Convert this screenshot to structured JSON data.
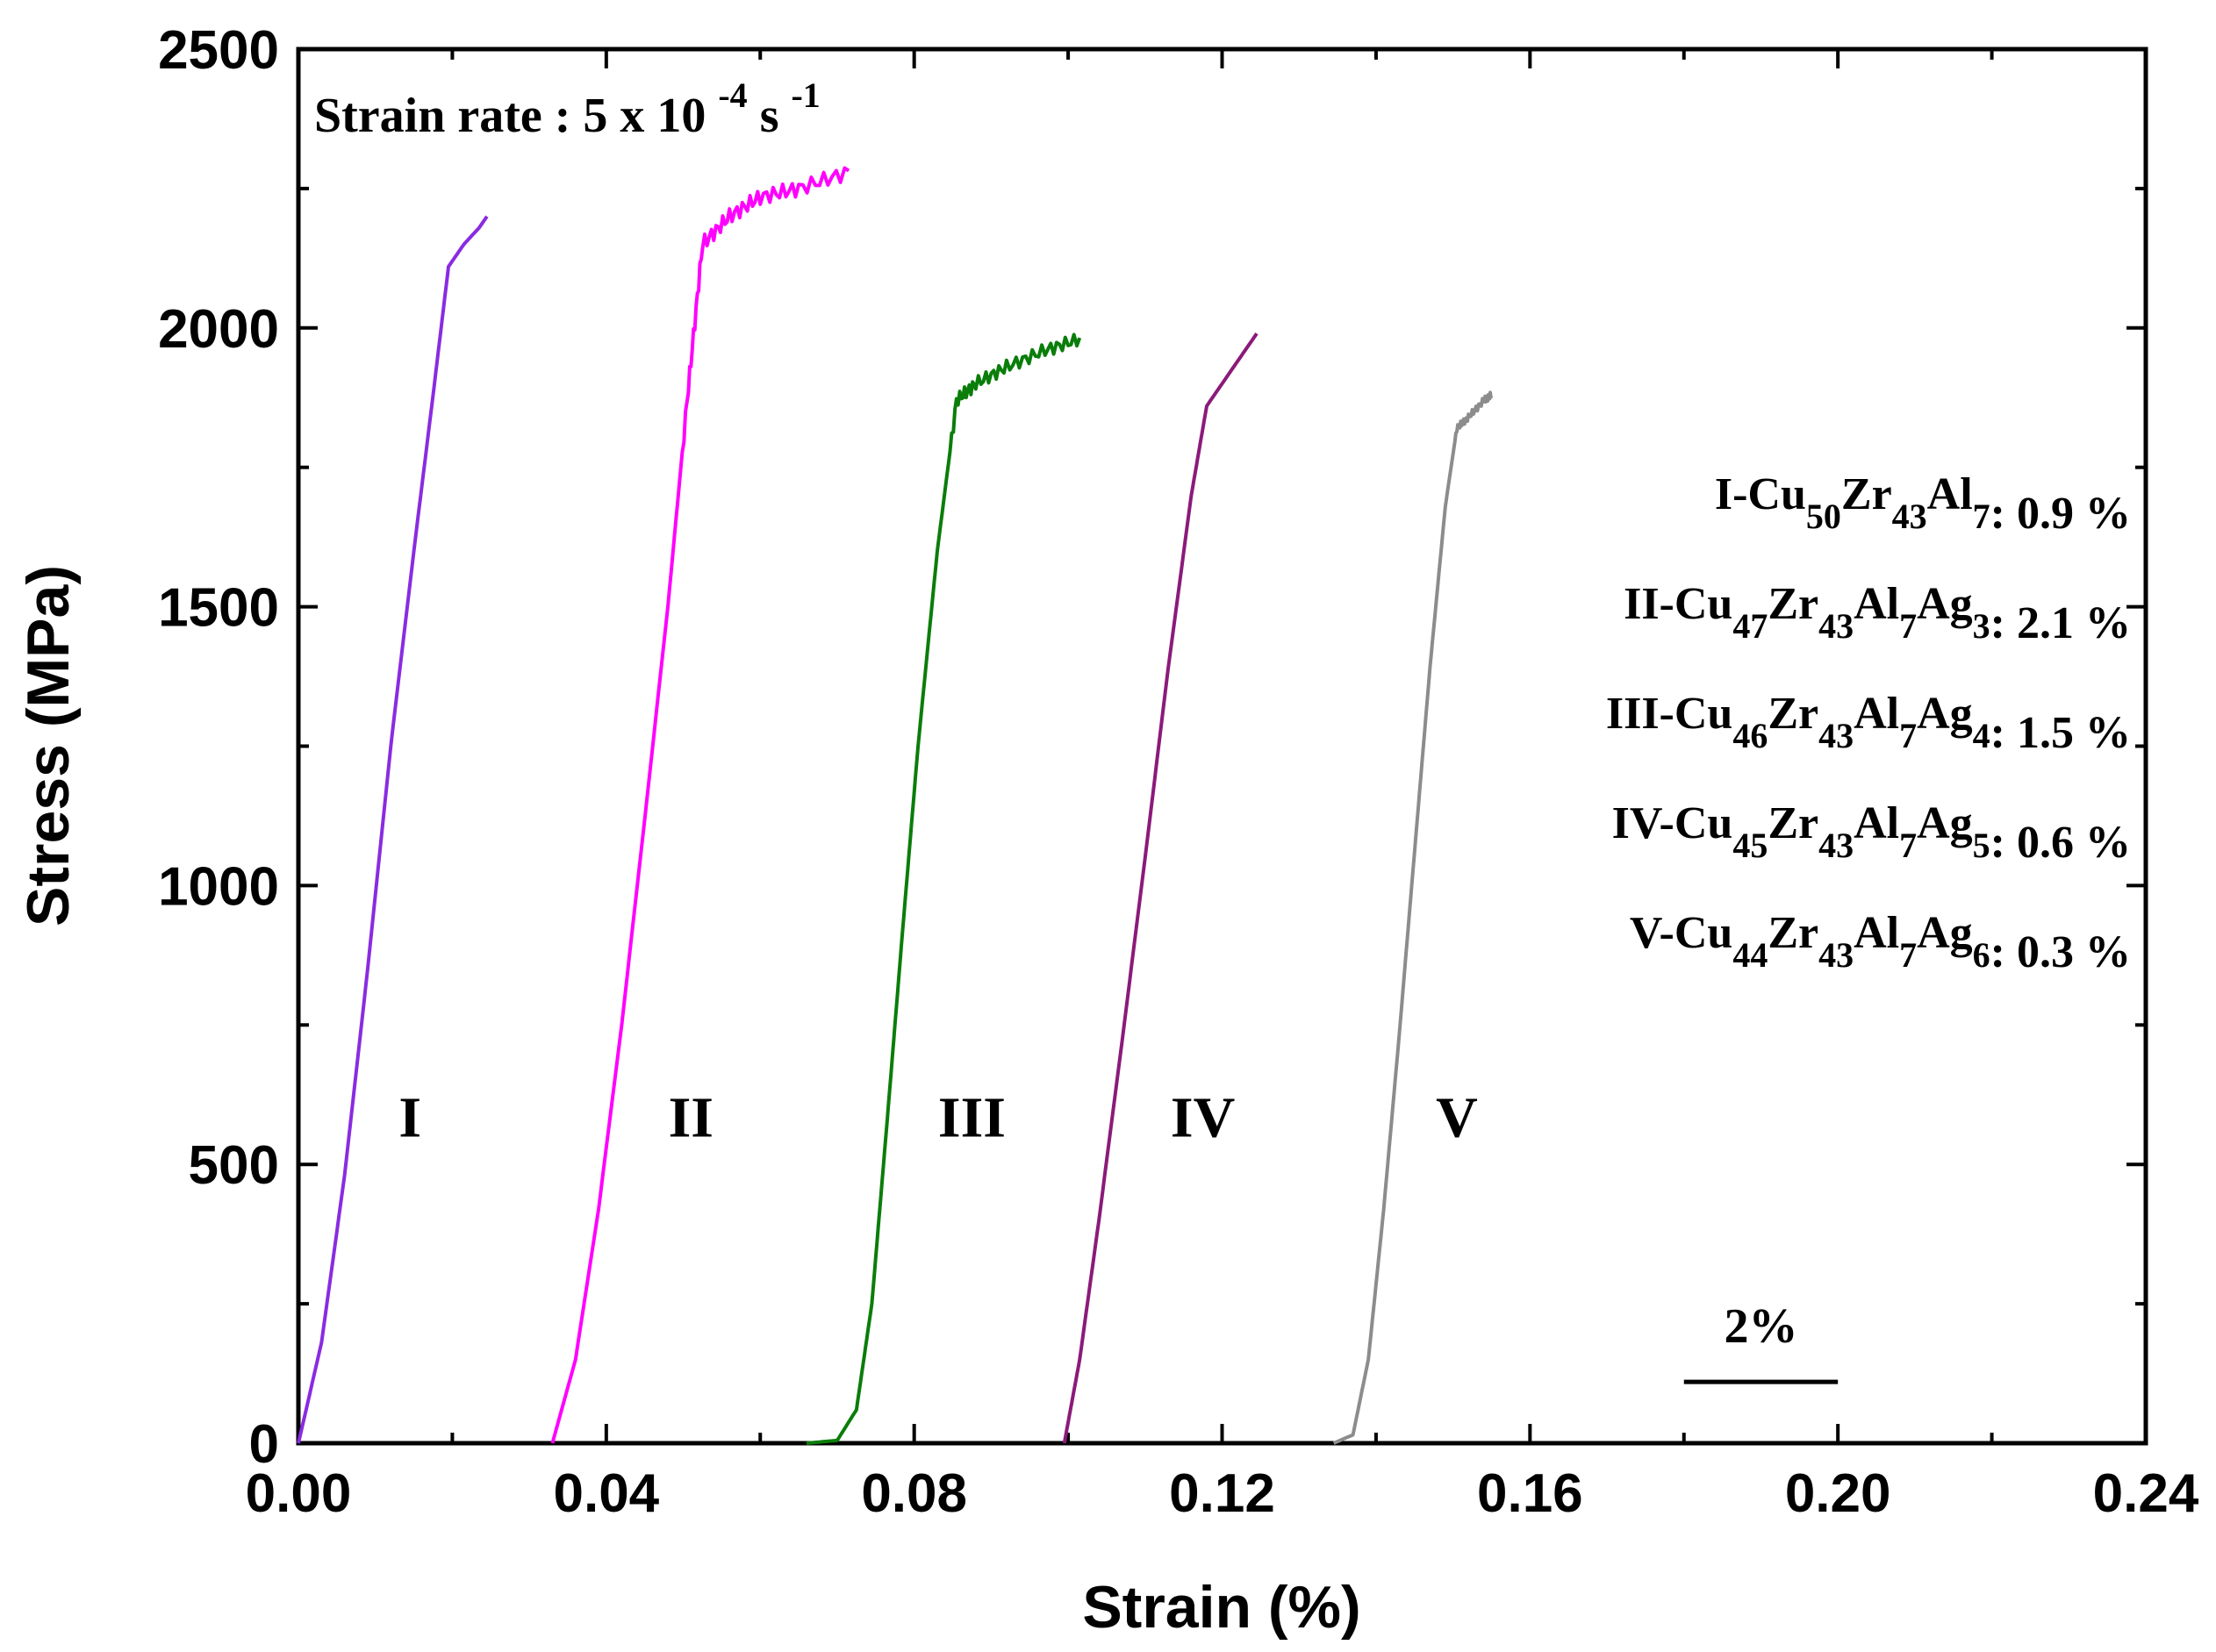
{
  "chart_data": {
    "type": "line",
    "title": "",
    "xlabel": "Strain (%)",
    "ylabel": "Stress (MPa)",
    "xlim": [
      0,
      0.24
    ],
    "ylim": [
      0,
      2500
    ],
    "x_ticks": [
      "0.00",
      "0.04",
      "0.08",
      "0.12",
      "0.16",
      "0.20",
      "0.24"
    ],
    "y_ticks": [
      "0",
      "500",
      "1000",
      "1500",
      "2000",
      "2500"
    ],
    "grid": false,
    "annotation": {
      "prefix": "Strain rate : 5 x 10",
      "exponent1": "-4",
      "middle": " s",
      "exponent2": "-1"
    },
    "scale_bar": {
      "label": "2%",
      "x_start": 0.18,
      "x_end": 0.2,
      "y": 110
    },
    "series": [
      {
        "name": "I",
        "color": "#8a2be2",
        "label_pos": [
          0.0145,
          550
        ],
        "points": [
          [
            0.0,
            0
          ],
          [
            0.003,
            180
          ],
          [
            0.006,
            480
          ],
          [
            0.009,
            850
          ],
          [
            0.012,
            1250
          ],
          [
            0.015,
            1600
          ],
          [
            0.0175,
            1880
          ],
          [
            0.0195,
            2110
          ],
          [
            0.0215,
            2150
          ],
          [
            0.0235,
            2180
          ],
          [
            0.0245,
            2200
          ]
        ],
        "noise": 0,
        "legend": {
          "prefix": "I-Cu",
          "parts": [
            [
              "50",
              "Zr"
            ],
            [
              "43",
              "Al"
            ],
            [
              "7",
              ""
            ]
          ],
          "value": ": 0.9 %"
        }
      },
      {
        "name": "II",
        "color": "#ff00ff",
        "label_pos": [
          0.051,
          550
        ],
        "points": [
          [
            0.033,
            0
          ],
          [
            0.036,
            150
          ],
          [
            0.039,
            420
          ],
          [
            0.042,
            750
          ],
          [
            0.045,
            1120
          ],
          [
            0.048,
            1500
          ],
          [
            0.0505,
            1870
          ],
          [
            0.0525,
            2150
          ],
          [
            0.056,
            2200
          ],
          [
            0.06,
            2235
          ],
          [
            0.065,
            2250
          ],
          [
            0.0715,
            2280
          ]
        ],
        "noise": 14,
        "legend": {
          "prefix": "II-Cu",
          "parts": [
            [
              "47",
              "Zr"
            ],
            [
              "43",
              "Al"
            ],
            [
              "7",
              "Ag"
            ],
            [
              "3",
              ""
            ]
          ],
          "value": ": 2.1 %"
        }
      },
      {
        "name": "III",
        "color": "#0a7d0a",
        "label_pos": [
          0.0875,
          550
        ],
        "points": [
          [
            0.066,
            0
          ],
          [
            0.07,
            5
          ],
          [
            0.0725,
            60
          ],
          [
            0.0745,
            250
          ],
          [
            0.0765,
            580
          ],
          [
            0.0785,
            920
          ],
          [
            0.0805,
            1250
          ],
          [
            0.083,
            1600
          ],
          [
            0.0855,
            1870
          ],
          [
            0.088,
            1900
          ],
          [
            0.092,
            1930
          ],
          [
            0.097,
            1960
          ],
          [
            0.1015,
            1980
          ]
        ],
        "noise": 12,
        "legend": {
          "prefix": "III-Cu",
          "parts": [
            [
              "46",
              "Zr"
            ],
            [
              "43",
              "Al"
            ],
            [
              "7",
              "Ag"
            ],
            [
              "4",
              ""
            ]
          ],
          "value": ": 1.5 %"
        }
      },
      {
        "name": "IV",
        "color": "#8b1a7a",
        "label_pos": [
          0.1175,
          550
        ],
        "points": [
          [
            0.0995,
            0
          ],
          [
            0.1015,
            150
          ],
          [
            0.104,
            400
          ],
          [
            0.107,
            720
          ],
          [
            0.11,
            1050
          ],
          [
            0.113,
            1390
          ],
          [
            0.116,
            1700
          ],
          [
            0.118,
            1860
          ],
          [
            0.121,
            1920
          ],
          [
            0.1245,
            1990
          ]
        ],
        "noise": 0,
        "legend": {
          "prefix": "IV-Cu",
          "parts": [
            [
              "45",
              "Zr"
            ],
            [
              "43",
              "Al"
            ],
            [
              "7",
              "Ag"
            ],
            [
              "5",
              ""
            ]
          ],
          "value": ": 0.6 %"
        }
      },
      {
        "name": "V",
        "color": "#8c8c8c",
        "label_pos": [
          0.1505,
          550
        ],
        "points": [
          [
            0.1345,
            0
          ],
          [
            0.137,
            15
          ],
          [
            0.139,
            150
          ],
          [
            0.141,
            420
          ],
          [
            0.143,
            730
          ],
          [
            0.145,
            1060
          ],
          [
            0.147,
            1390
          ],
          [
            0.149,
            1680
          ],
          [
            0.1505,
            1820
          ],
          [
            0.152,
            1840
          ],
          [
            0.154,
            1870
          ],
          [
            0.155,
            1880
          ]
        ],
        "noise": 6,
        "legend": {
          "prefix": "V-Cu",
          "parts": [
            [
              "44",
              "Zr"
            ],
            [
              "43",
              "Al"
            ],
            [
              "7",
              "Ag"
            ],
            [
              "6",
              ""
            ]
          ],
          "value": ": 0.3 %"
        }
      }
    ]
  }
}
